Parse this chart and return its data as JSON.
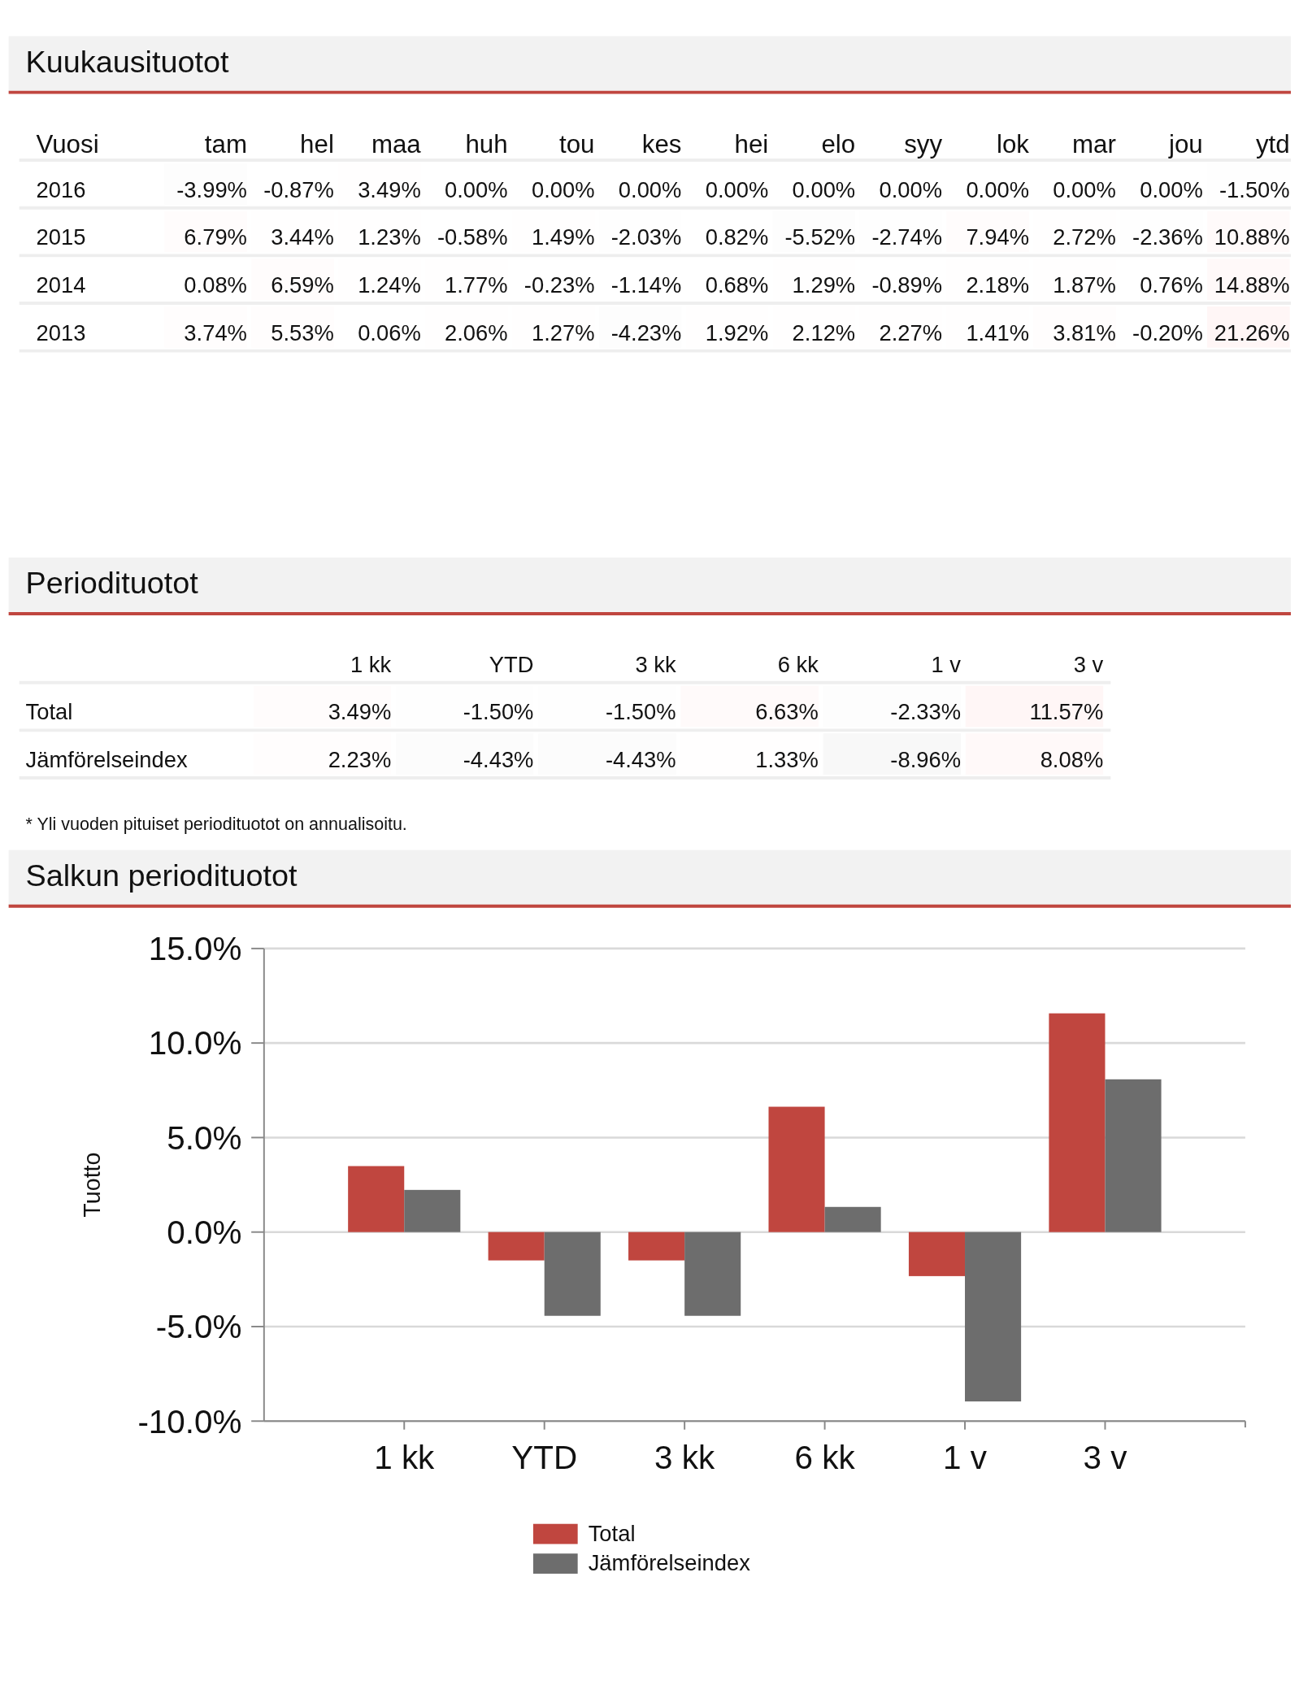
{
  "chart_data": [
    {
      "type": "heatmap",
      "title": "Kuukausituotot",
      "ylabel": "Vuosi",
      "categories": [
        "tam",
        "hel",
        "maa",
        "huh",
        "tou",
        "kes",
        "hei",
        "elo",
        "syy",
        "lok",
        "mar",
        "jou",
        "ytd"
      ],
      "y_categories": [
        "2016",
        "2015",
        "2014",
        "2013"
      ],
      "cells": [
        [
          -3.99,
          -0.87,
          3.49,
          0,
          0,
          0,
          0,
          0,
          0,
          0,
          0,
          0,
          -1.5
        ],
        [
          6.79,
          3.44,
          1.23,
          -0.58,
          1.49,
          -2.03,
          0.82,
          -5.52,
          -2.74,
          7.94,
          2.72,
          -2.36,
          10.88
        ],
        [
          0.08,
          6.59,
          1.24,
          1.77,
          -0.23,
          -1.14,
          0.68,
          1.29,
          -0.89,
          2.18,
          1.87,
          0.76,
          14.88
        ],
        [
          3.74,
          5.53,
          0.06,
          2.06,
          1.27,
          -4.23,
          1.92,
          2.12,
          2.27,
          1.41,
          3.81,
          -0.2,
          21.26
        ]
      ],
      "cell_labels": [
        [
          "-3.99%",
          "-0.87%",
          "3.49%",
          "0.00%",
          "0.00%",
          "0.00%",
          "0.00%",
          "0.00%",
          "0.00%",
          "0.00%",
          "0.00%",
          "0.00%",
          "-1.50%"
        ],
        [
          "6.79%",
          "3.44%",
          "1.23%",
          "-0.58%",
          "1.49%",
          "-2.03%",
          "0.82%",
          "-5.52%",
          "-2.74%",
          "7.94%",
          "2.72%",
          "-2.36%",
          "10.88%"
        ],
        [
          "0.08%",
          "6.59%",
          "1.24%",
          "1.77%",
          "-0.23%",
          "-1.14%",
          "0.68%",
          "1.29%",
          "-0.89%",
          "2.18%",
          "1.87%",
          "0.76%",
          "14.88%"
        ],
        [
          "3.74%",
          "5.53%",
          "0.06%",
          "2.06%",
          "1.27%",
          "-4.23%",
          "1.92%",
          "2.12%",
          "2.27%",
          "1.41%",
          "3.81%",
          "-0.20%",
          "21.26%"
        ]
      ]
    },
    {
      "type": "heatmap",
      "title": "Periodituotot",
      "categories": [
        "1 kk",
        "YTD",
        "3 kk",
        "6 kk",
        "1 v",
        "3 v"
      ],
      "y_categories": [
        "Total",
        "Jämförelseindex"
      ],
      "cells": [
        [
          3.49,
          -1.5,
          -1.5,
          6.63,
          -2.33,
          11.57
        ],
        [
          2.23,
          -4.43,
          -4.43,
          1.33,
          -8.96,
          8.08
        ]
      ],
      "cell_labels": [
        [
          "3.49%",
          "-1.50%",
          "-1.50%",
          "6.63%",
          "-2.33%",
          "11.57%"
        ],
        [
          "2.23%",
          "-4.43%",
          "-4.43%",
          "1.33%",
          "-8.96%",
          "8.08%"
        ]
      ],
      "annotations": [
        "* Yli vuoden pituiset periodituotot on annualisoitu."
      ]
    },
    {
      "type": "bar",
      "title": "Salkun periodituotot",
      "ylabel": "Tuotto",
      "categories": [
        "1 kk",
        "YTD",
        "3 kk",
        "6 kk",
        "1 v",
        "3 v"
      ],
      "series": [
        {
          "name": "Total",
          "color": "#c0463f",
          "values": [
            3.49,
            -1.5,
            -1.5,
            6.63,
            -2.33,
            11.57
          ]
        },
        {
          "name": "Jämförelseindex",
          "color": "#6d6d6d",
          "values": [
            2.23,
            -4.43,
            -4.43,
            1.33,
            -8.96,
            8.08
          ]
        }
      ],
      "ylim": [
        -10,
        15
      ],
      "yticks": [
        {
          "value": -10,
          "label": "-10.0%"
        },
        {
          "value": -5,
          "label": "-5.0%"
        },
        {
          "value": 0,
          "label": "0.0%"
        },
        {
          "value": 5,
          "label": "5.0%"
        },
        {
          "value": 10,
          "label": "10.0%"
        },
        {
          "value": 15,
          "label": "15.0%"
        }
      ],
      "grid": "y",
      "legend": "bottom"
    }
  ]
}
